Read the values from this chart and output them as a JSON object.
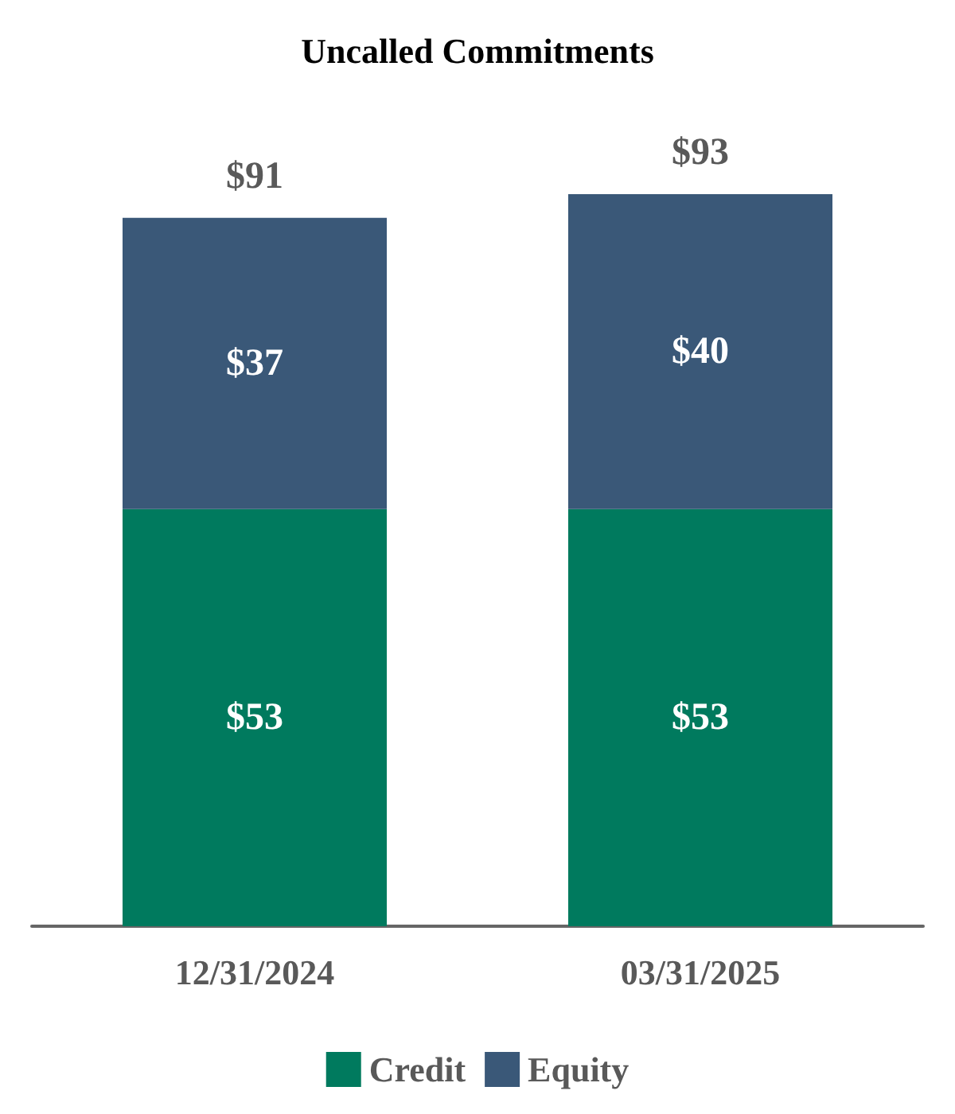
{
  "chart_data": {
    "type": "bar",
    "title": "Uncalled Commitments",
    "categories": [
      "12/31/2024",
      "03/31/2025"
    ],
    "stacked": true,
    "legend": "bottom",
    "series": [
      {
        "name": "Credit",
        "color": "#007a5e",
        "values": [
          53,
          53
        ],
        "value_labels": [
          "$53",
          "$53"
        ]
      },
      {
        "name": "Equity",
        "color": "#3a5878",
        "values": [
          37,
          40
        ],
        "value_labels": [
          "$37",
          "$40"
        ]
      }
    ],
    "totals": [
      "$91",
      "$93"
    ]
  }
}
